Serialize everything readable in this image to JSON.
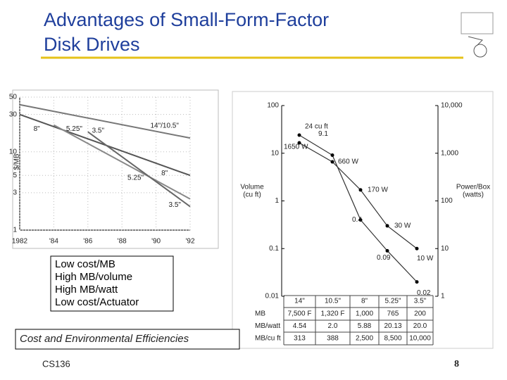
{
  "title": [
    "Advantages of Small-Form-Factor",
    "Disk Drives"
  ],
  "bullets": [
    "Low cost/MB",
    "High MB/volume",
    "High MB/watt",
    "Low cost/Actuator"
  ],
  "caption": "Cost and Environmental Efficiencies",
  "footer": {
    "course": "CS136",
    "page": "8"
  },
  "chart_data": [
    {
      "type": "line",
      "ylabel": "$/MB",
      "log_y": true,
      "xlim": [
        1982,
        1992
      ],
      "ylim": [
        1,
        50
      ],
      "xticks": [
        1982,
        {
          "value": 1984,
          "label": "'84"
        },
        {
          "value": 1986,
          "label": "'86"
        },
        {
          "value": 1988,
          "label": "'88"
        },
        {
          "value": 1990,
          "label": "'90"
        },
        {
          "value": 1992,
          "label": "'92"
        }
      ],
      "yticks": [
        1,
        3,
        5,
        10,
        30,
        50
      ],
      "series": [
        {
          "name": "14\"/10.5\"",
          "color": "#777",
          "x": [
            1982,
            1992
          ],
          "values": [
            40,
            15
          ]
        },
        {
          "name": "8\"",
          "color": "#555",
          "x": [
            1982,
            1992
          ],
          "values": [
            30,
            5
          ]
        },
        {
          "name": "5.25\"",
          "color": "#888",
          "x": [
            1984,
            1992
          ],
          "values": [
            22,
            2.5
          ]
        },
        {
          "name": "3.5\"",
          "color": "#666",
          "x": [
            1986,
            1992
          ],
          "values": [
            18,
            2
          ]
        }
      ]
    },
    {
      "type": "line",
      "categories": [
        "14\"",
        "10.5\"",
        "8\"",
        "5.25\"",
        "3.5\""
      ],
      "ylabel": [
        "Volume",
        "(cu ft)"
      ],
      "y2label": [
        "Power/Box",
        "(watts)"
      ],
      "log_y": true,
      "ylim": [
        0.01,
        100
      ],
      "yticks": [
        0.01,
        0.1,
        1,
        10,
        100
      ],
      "y2lim": [
        1,
        10000
      ],
      "y2ticks": [
        1,
        10,
        100,
        {
          "value": 1000,
          "label": "1,000"
        },
        {
          "value": 10000,
          "label": "10,000"
        }
      ],
      "series": [
        {
          "color": "#333",
          "values": [
            24,
            9.1,
            0.4,
            0.09,
            0.02
          ],
          "value_labels": [
            "24 cu ft",
            "9.1",
            "0.4",
            "0.09",
            "0.02"
          ]
        },
        {
          "color": "#333",
          "axis": "y2",
          "values": [
            1650,
            660,
            170,
            30,
            10
          ],
          "value_labels": [
            "1650 W",
            "660 W",
            "170 W",
            "30 W",
            "10 W"
          ]
        }
      ],
      "table": {
        "rows": [
          {
            "label": "MB",
            "cells": [
              "7,500 F",
              "1,320 F",
              "1,000",
              "765",
              "200"
            ]
          },
          {
            "label": "MB/watt",
            "cells": [
              "4.54",
              "2.0",
              "5.88",
              "20.13",
              "20.0"
            ]
          },
          {
            "label": "MB/cu ft",
            "cells": [
              "313",
              "388",
              "2,500",
              "8,500",
              "10,000"
            ]
          }
        ]
      }
    }
  ]
}
